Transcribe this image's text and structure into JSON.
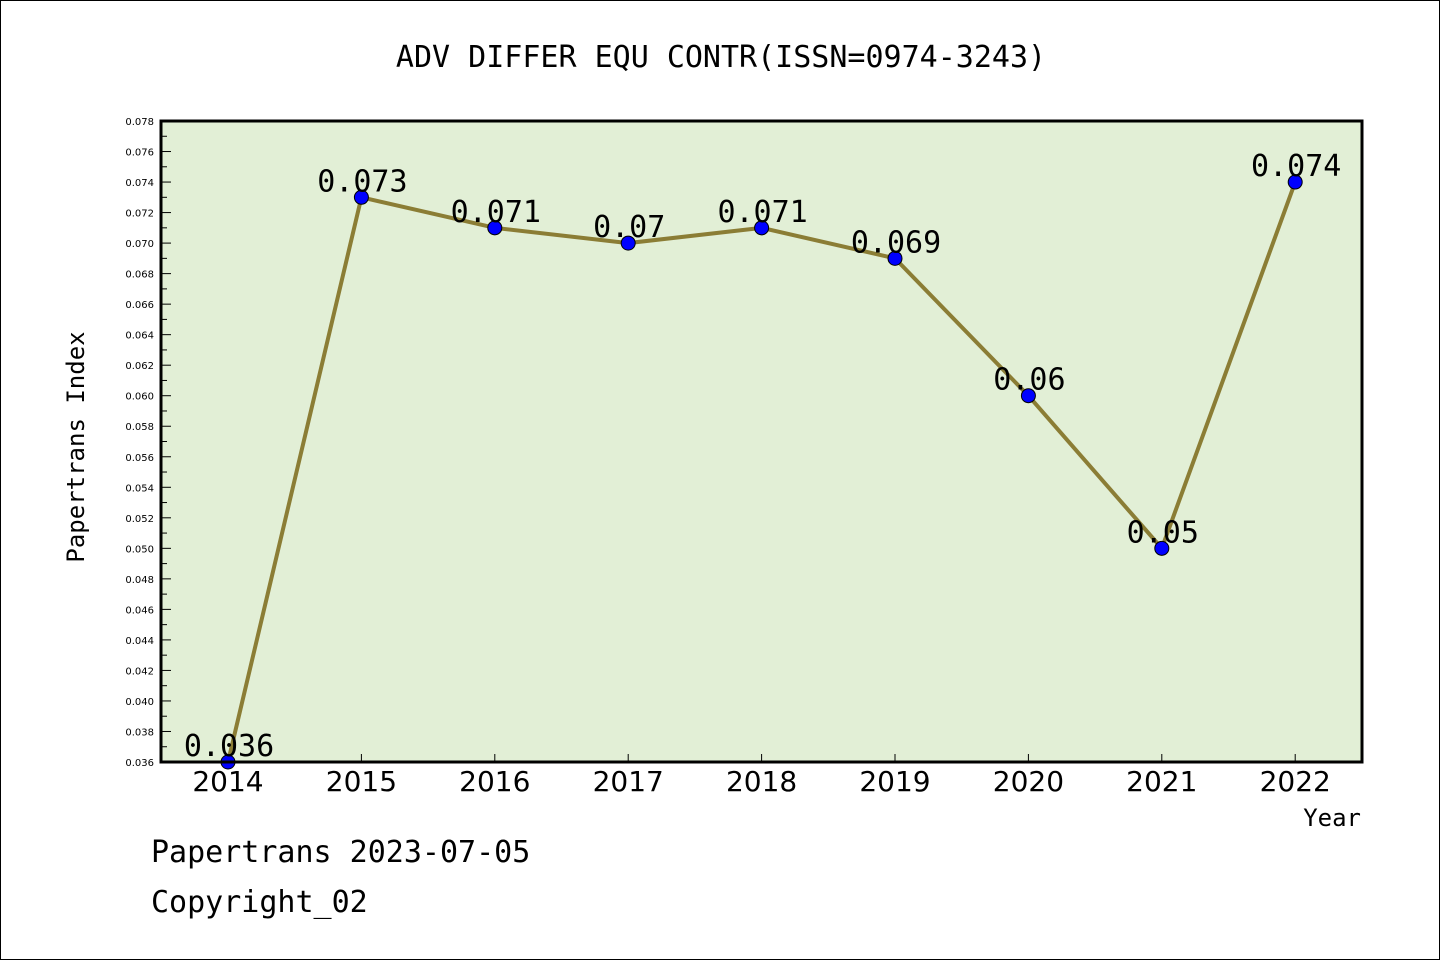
{
  "footer": {
    "line1": "Papertrans 2023-07-05",
    "line2": "Copyright_02"
  },
  "colors": {
    "plot_background": "#e2efd6",
    "line": "#8b7d35",
    "marker": "#0000ff"
  },
  "chart_data": {
    "type": "line",
    "title": "ADV DIFFER EQU CONTR(ISSN=0974-3243)",
    "xlabel": "Year",
    "ylabel": "Papertrans Index",
    "categories": [
      "2014",
      "2015",
      "2016",
      "2017",
      "2018",
      "2019",
      "2020",
      "2021",
      "2022"
    ],
    "series": [
      {
        "values": [
          0.036,
          0.073,
          0.071,
          0.07,
          0.071,
          0.069,
          0.06,
          0.05,
          0.074
        ],
        "labels": [
          "0.036",
          "0.073",
          "0.071",
          "0.07",
          "0.071",
          "0.069",
          "0.06",
          "0.05",
          "0.074"
        ]
      }
    ],
    "ylim": [
      0.036,
      0.078
    ],
    "ytick_step": 0.002,
    "ytick_decimals": 3,
    "grid": false,
    "legend": "none"
  }
}
